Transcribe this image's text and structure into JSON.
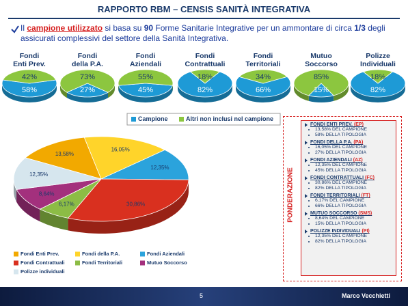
{
  "slide": {
    "title": "RAPPORTO RBM – CENSIS SANITÀ INTEGRATIVA",
    "intro": [
      "Il ",
      "campione utilizzato",
      " si basa su ",
      "90",
      " Forme Sanitarie Integrative per un ammontare di circa ",
      "1/3",
      " degli assicurati complessivi del settore della Sanità Integrativa."
    ],
    "page_number": "5",
    "author": "Marco Vecchietti"
  },
  "weighting": {
    "label": "PONDERAZIONE",
    "items": [
      {
        "name": "FONDI ENTI PREV.",
        "code": "(EP)",
        "lines": [
          "13,58% DEL CAMPIONE",
          "58% DELLA TIPOLOGIA"
        ]
      },
      {
        "name": "FONDI DELLA P.A.",
        "code": "(PA)",
        "lines": [
          "16,05% DEL CAMPIONE",
          "27% DELLA TIPOLOGIA"
        ]
      },
      {
        "name": "FONDI AZIENDALI",
        "code": "(AZ)",
        "lines": [
          "12,35% DEL CAMPIONE",
          "45% DELLA TIPOLOGIA"
        ]
      },
      {
        "name": "FONDI CONTRATTUALI",
        "code": "(FC)",
        "lines": [
          "30,86% DEL CAMPIONE",
          "82% DELLA TIPOLOGIA"
        ]
      },
      {
        "name": "FONDI TERRITORIALI",
        "code": "(FT)",
        "lines": [
          "6,17% DEL CAMPIONE",
          "66% DELLA TIPOLOGIA"
        ]
      },
      {
        "name": "MUTUO SOCCORSO",
        "code": "(SMS)",
        "lines": [
          "8,64% DEL CAMPIONE",
          "15% DELLA TIPOLOGIA"
        ]
      },
      {
        "name": "POLIZZE INDIVIDUALI",
        "code": "(PI)",
        "lines": [
          "12,35% DEL CAMPIONE",
          "82% DELLA TIPOLOGIA"
        ]
      }
    ]
  },
  "chart_data": [
    {
      "type": "pie",
      "categories": [
        "Campione",
        "Altri non inclusi nel campione"
      ],
      "colors": [
        "#1e9ad6",
        "#8cc63f"
      ],
      "series": [
        {
          "title": [
            "Fondi",
            "Enti Prev."
          ],
          "values": [
            58,
            42
          ],
          "value_labels": [
            "58%",
            "42%"
          ]
        },
        {
          "title": [
            "Fondi",
            "della P.A."
          ],
          "values": [
            27,
            73
          ],
          "value_labels": [
            "27%",
            "73%"
          ]
        },
        {
          "title": [
            "Fondi",
            "Aziendali"
          ],
          "values": [
            45,
            55
          ],
          "value_labels": [
            "45%",
            "55%"
          ]
        },
        {
          "title": [
            "Fondi",
            "Contrattuali"
          ],
          "values": [
            82,
            18
          ],
          "value_labels": [
            "82%",
            "18%"
          ]
        },
        {
          "title": [
            "Fondi",
            "Territoriali"
          ],
          "values": [
            66,
            34
          ],
          "value_labels": [
            "66%",
            "34%"
          ]
        },
        {
          "title": [
            "Mutuo",
            "Soccorso"
          ],
          "values": [
            15,
            85
          ],
          "value_labels": [
            "15%",
            "85%"
          ]
        },
        {
          "title": [
            "Polizze",
            "Individuali"
          ],
          "values": [
            82,
            18
          ],
          "value_labels": [
            "82%",
            "18%"
          ]
        }
      ]
    },
    {
      "type": "pie",
      "categories": [
        "Fondi Enti Prev.",
        "Fondi della P.A.",
        "Fondi Aziendali",
        "Fondi Contrattuali",
        "Fondi Territoriali",
        "Mutuo Soccorso",
        "Polizze individuali"
      ],
      "colors": [
        "#f2a900",
        "#ffd42a",
        "#2ba3dc",
        "#d9301f",
        "#8cbc45",
        "#a3307d",
        "#d6e6ee"
      ],
      "values": [
        13.58,
        16.05,
        12.35,
        30.86,
        6.17,
        8.64,
        12.35
      ],
      "value_labels": [
        "13,58%",
        "16,05%",
        "12,35%",
        "30,86%",
        "6,17%",
        "8,64%",
        "12,35%"
      ]
    }
  ]
}
